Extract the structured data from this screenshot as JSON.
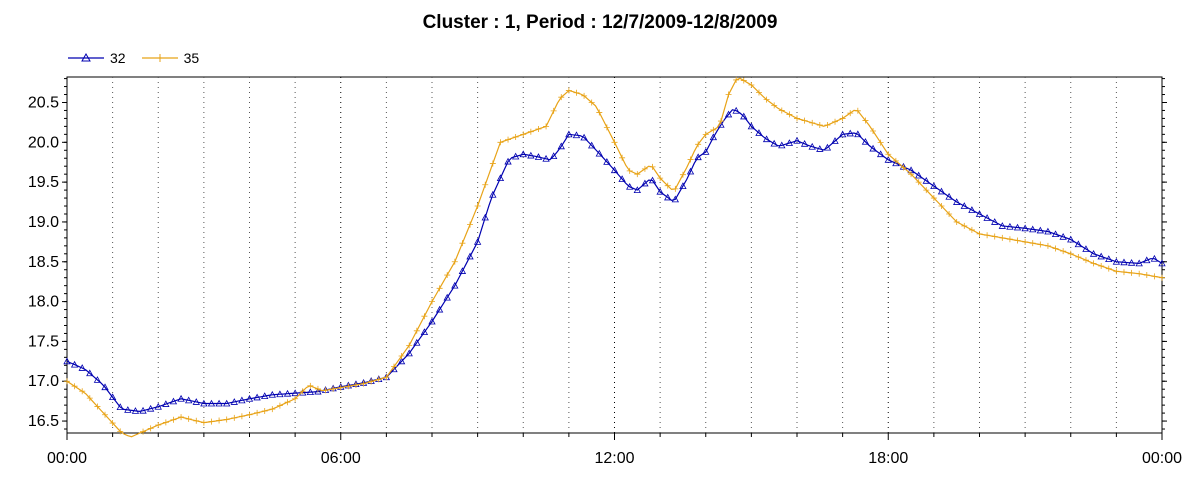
{
  "title": "Cluster : 1, Period : 12/7/2009-12/8/2009",
  "colors": {
    "series_32": "#0000b0",
    "series_35": "#e8a317",
    "grid": "#555555",
    "axis": "#000000"
  },
  "chart_data": {
    "type": "line",
    "title": "Cluster : 1, Period : 12/7/2009-12/8/2009",
    "xlabel": "",
    "ylabel": "",
    "x_unit": "hours",
    "xlim": [
      0,
      24
    ],
    "ylim": [
      16.35,
      20.82
    ],
    "x_ticks": [
      0,
      6,
      12,
      18,
      24
    ],
    "x_tick_labels": [
      "00:00",
      "06:00",
      "12:00",
      "18:00",
      "00:00"
    ],
    "y_ticks": [
      16.5,
      17.0,
      17.5,
      18.0,
      18.5,
      19.0,
      19.5,
      20.0,
      20.5
    ],
    "y_tick_labels": [
      "16.5",
      "17.0",
      "17.5",
      "18.0",
      "18.5",
      "19.0",
      "19.5",
      "20.0",
      "20.5"
    ],
    "grid": "vertical dotted every hour",
    "legend_position": "top-left",
    "series": [
      {
        "name": "32",
        "marker": "triangle",
        "x": [
          0,
          0.4,
          0.8,
          1.2,
          1.6,
          2.0,
          2.5,
          3.0,
          3.5,
          4.0,
          4.5,
          5.0,
          5.5,
          6.0,
          6.5,
          7.0,
          7.5,
          8.0,
          8.5,
          9.0,
          9.3,
          9.7,
          10.0,
          10.3,
          10.6,
          10.8,
          11.0,
          11.3,
          11.6,
          12.0,
          12.3,
          12.5,
          12.8,
          13.0,
          13.3,
          13.6,
          13.8,
          14.0,
          14.2,
          14.4,
          14.6,
          14.8,
          15.0,
          15.3,
          15.6,
          16.0,
          16.3,
          16.6,
          17.0,
          17.3,
          17.6,
          18.0,
          18.5,
          19.0,
          19.5,
          20.0,
          20.5,
          21.0,
          21.5,
          22.0,
          22.5,
          23.0,
          23.5,
          23.8,
          24.0
        ],
        "values": [
          17.25,
          17.15,
          16.95,
          16.65,
          16.62,
          16.68,
          16.78,
          16.72,
          16.72,
          16.78,
          16.83,
          16.85,
          16.87,
          16.93,
          16.98,
          17.05,
          17.35,
          17.75,
          18.2,
          18.75,
          19.3,
          19.8,
          19.85,
          19.82,
          19.78,
          19.92,
          20.1,
          20.08,
          19.9,
          19.65,
          19.45,
          19.4,
          19.55,
          19.38,
          19.25,
          19.55,
          19.8,
          19.88,
          20.1,
          20.28,
          20.42,
          20.35,
          20.2,
          20.05,
          19.95,
          20.02,
          19.95,
          19.9,
          20.1,
          20.12,
          19.95,
          19.78,
          19.65,
          19.45,
          19.25,
          19.1,
          18.95,
          18.92,
          18.88,
          18.78,
          18.6,
          18.5,
          18.48,
          18.55,
          18.48
        ]
      },
      {
        "name": "35",
        "marker": "plus",
        "x": [
          0,
          0.4,
          0.8,
          1.2,
          1.4,
          1.6,
          2.0,
          2.5,
          3.0,
          3.5,
          4.0,
          4.5,
          5.0,
          5.3,
          5.6,
          6.0,
          6.5,
          7.0,
          7.5,
          8.0,
          8.5,
          9.0,
          9.5,
          10.0,
          10.5,
          10.8,
          11.0,
          11.3,
          11.6,
          12.0,
          12.3,
          12.5,
          12.8,
          13.0,
          13.3,
          13.6,
          13.8,
          14.0,
          14.3,
          14.5,
          14.7,
          15.0,
          15.3,
          15.6,
          16.0,
          16.3,
          16.6,
          17.0,
          17.3,
          17.6,
          18.0,
          18.5,
          19.0,
          19.5,
          20.0,
          20.5,
          21.0,
          21.5,
          22.0,
          22.5,
          23.0,
          23.5,
          24.0
        ],
        "values": [
          17.0,
          16.85,
          16.6,
          16.35,
          16.3,
          16.35,
          16.45,
          16.55,
          16.48,
          16.52,
          16.58,
          16.65,
          16.78,
          16.95,
          16.88,
          16.92,
          16.97,
          17.05,
          17.45,
          18.0,
          18.5,
          19.2,
          20.0,
          20.1,
          20.2,
          20.55,
          20.65,
          20.6,
          20.45,
          20.0,
          19.65,
          19.6,
          19.72,
          19.55,
          19.38,
          19.7,
          19.95,
          20.1,
          20.2,
          20.6,
          20.82,
          20.72,
          20.55,
          20.42,
          20.3,
          20.25,
          20.2,
          20.3,
          20.42,
          20.2,
          19.85,
          19.6,
          19.3,
          19.0,
          18.85,
          18.8,
          18.75,
          18.7,
          18.6,
          18.48,
          18.38,
          18.35,
          18.3
        ]
      }
    ]
  }
}
